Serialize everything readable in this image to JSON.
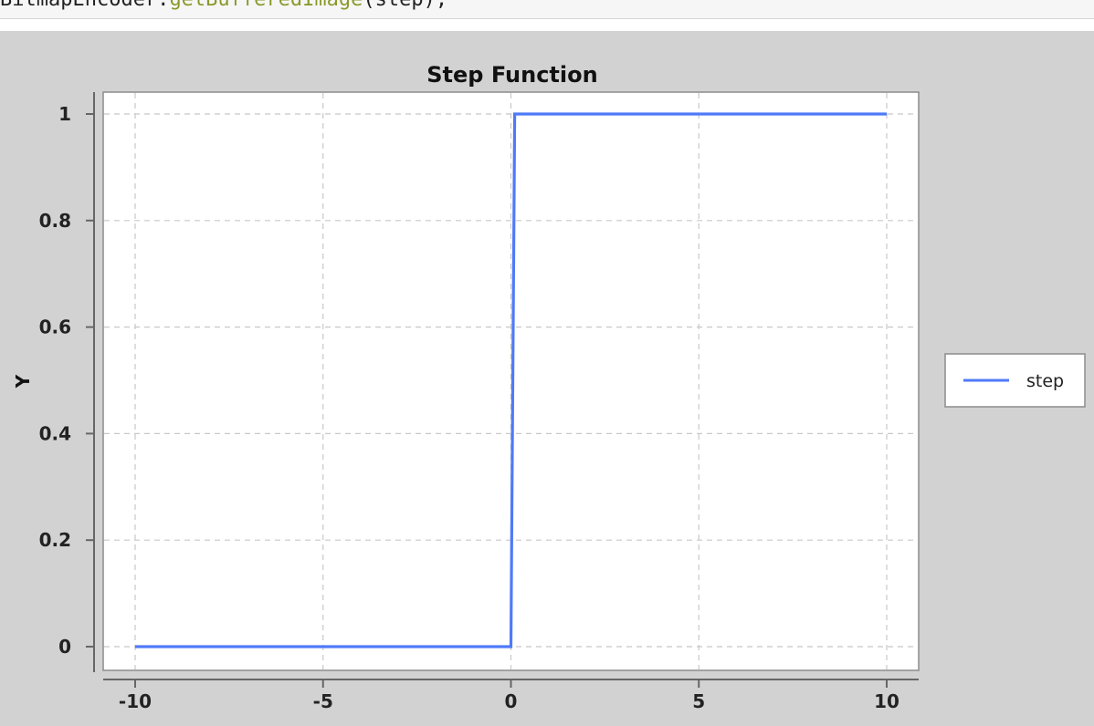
{
  "code": {
    "prefix": "BitmapEncoder.",
    "method": "getBufferedImage",
    "suffix": "(step);"
  },
  "chart_data": {
    "type": "line",
    "title": "Step Function",
    "ylabel": "Y",
    "xlabel": "",
    "xlim": [
      -10,
      10
    ],
    "ylim": [
      0,
      1
    ],
    "x_ticks": [
      -10,
      -5,
      0,
      5,
      10
    ],
    "x_tick_labels": [
      "-10",
      "-5",
      "0",
      "5",
      "10"
    ],
    "y_ticks": [
      0,
      0.2,
      0.4,
      0.6,
      0.8,
      1
    ],
    "y_tick_labels": [
      "0",
      "0.2",
      "0.4",
      "0.6",
      "0.8",
      "1"
    ],
    "grid": true,
    "legend_position": "right",
    "series": [
      {
        "name": "step",
        "color": "#4f7af8",
        "x": [
          -10,
          0,
          0.1,
          10
        ],
        "y": [
          0,
          0,
          1,
          1
        ]
      }
    ]
  }
}
